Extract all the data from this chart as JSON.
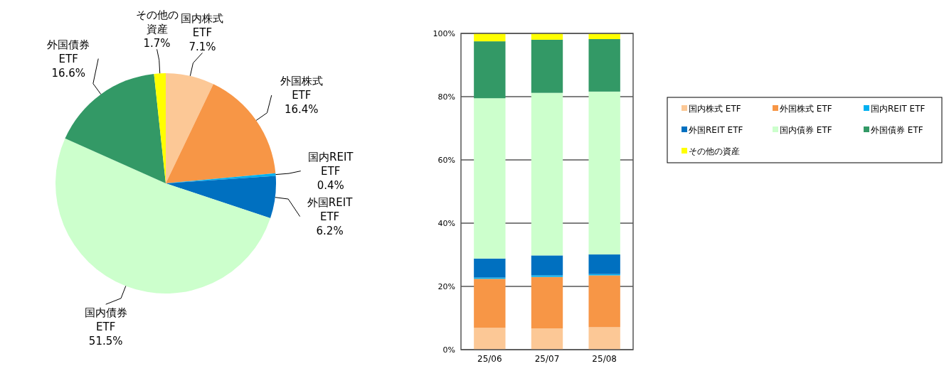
{
  "chart_data": [
    {
      "type": "pie",
      "categories": [
        "国内株式 ETF",
        "外国株式 ETF",
        "国内REIT ETF",
        "外国REIT ETF",
        "国内債券 ETF",
        "外国債券 ETF",
        "その他の資産"
      ],
      "values": [
        7.1,
        16.4,
        0.4,
        6.2,
        51.5,
        16.6,
        1.7
      ],
      "colors": [
        "#fcc896",
        "#f79646",
        "#00b0f0",
        "#0070c0",
        "#ccffcc",
        "#339966",
        "#ffff00"
      ],
      "value_labels": [
        "7.1%",
        "16.4%",
        "0.4%",
        "6.2%",
        "51.5%",
        "16.6%",
        "1.7%"
      ],
      "data_labels": true
    },
    {
      "type": "bar",
      "categories": [
        "25/06",
        "25/07",
        "25/08"
      ],
      "stacked": true,
      "grid": "y",
      "legend": "right",
      "ylim": [
        0,
        100
      ],
      "yticks": [
        {
          "value": 0,
          "label": "0%"
        },
        {
          "value": 20,
          "label": "20%"
        },
        {
          "value": 40,
          "label": "40%"
        },
        {
          "value": 60,
          "label": "60%"
        },
        {
          "value": 80,
          "label": "80%"
        },
        {
          "value": 100,
          "label": "100%"
        }
      ],
      "series": [
        {
          "name": "国内株式 ETF",
          "color": "#fcc896",
          "values": [
            6.9,
            6.7,
            7.1
          ]
        },
        {
          "name": "外国株式 ETF",
          "color": "#f79646",
          "values": [
            15.5,
            16.3,
            16.4
          ]
        },
        {
          "name": "国内REIT ETF",
          "color": "#00b0f0",
          "values": [
            0.4,
            0.5,
            0.4
          ]
        },
        {
          "name": "外国REIT ETF",
          "color": "#0070c0",
          "values": [
            6.0,
            6.3,
            6.2
          ]
        },
        {
          "name": "国内債券 ETF",
          "color": "#ccffcc",
          "values": [
            50.7,
            51.4,
            51.5
          ]
        },
        {
          "name": "外国債券 ETF",
          "color": "#339966",
          "values": [
            18.0,
            16.8,
            16.6
          ]
        },
        {
          "name": "その他の資産",
          "color": "#ffff00",
          "values": [
            2.5,
            2.0,
            1.7
          ]
        }
      ]
    }
  ]
}
